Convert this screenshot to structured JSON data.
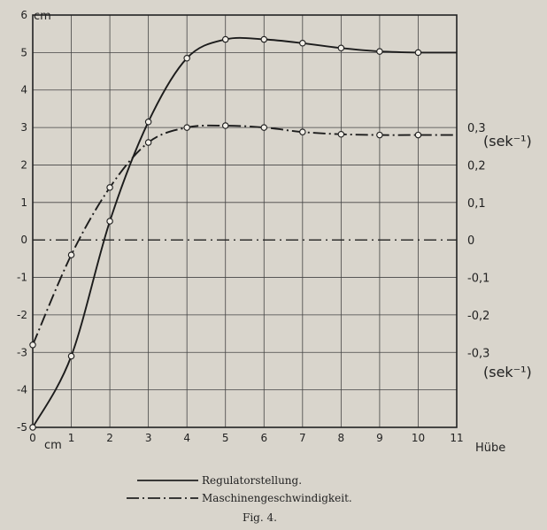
{
  "chart_data": {
    "type": "line",
    "x_ticks": [
      "0",
      "1",
      "2",
      "3",
      "4",
      "5",
      "6",
      "7",
      "8",
      "9",
      "10",
      "11"
    ],
    "y_ticks": [
      "-5",
      "-4",
      "-3",
      "-2",
      "-1",
      "0",
      "1",
      "2",
      "3",
      "4",
      "5",
      "6"
    ],
    "right_ticks": [
      "0,3",
      "0,2",
      "0,1",
      "0",
      "-0,1",
      "-0,2",
      "-0,3"
    ],
    "right_tick_values": [
      0.3,
      0.2,
      0.1,
      0,
      -0.1,
      -0.2,
      -0.3
    ],
    "xlabel": "Hübe",
    "ylabel_top": "cm",
    "ylabel_bottom": "cm",
    "right_unit_top": "(sek⁻¹)",
    "right_unit_bottom": "(sek⁻¹)",
    "xlim": [
      0,
      11
    ],
    "ylim": [
      -5,
      6
    ],
    "grid": true,
    "series": [
      {
        "name": "Regulatorstellung.",
        "style": "solid",
        "x": [
          0,
          1,
          2,
          3,
          4,
          5,
          6,
          7,
          8,
          9,
          10,
          11
        ],
        "y": [
          -5.0,
          -3.1,
          0.5,
          3.15,
          4.85,
          5.35,
          5.35,
          5.25,
          5.12,
          5.03,
          5.0,
          5.0
        ],
        "markers_x": [
          0,
          1,
          2,
          3,
          4,
          5,
          6,
          7,
          8,
          9,
          10
        ]
      },
      {
        "name": "Maschinengeschwindigkeit.",
        "style": "dash-dot",
        "x": [
          0,
          1,
          2,
          3,
          4,
          5,
          6,
          7,
          8,
          9,
          10,
          11
        ],
        "y": [
          -2.8,
          -0.4,
          1.4,
          2.6,
          3.0,
          3.05,
          3.0,
          2.88,
          2.82,
          2.8,
          2.8,
          2.8
        ],
        "markers_x": [
          0,
          1,
          2,
          3,
          4,
          5,
          6,
          7,
          8,
          9,
          10
        ]
      }
    ],
    "zero_line_style": "dash-dot"
  },
  "caption": "Fig. 4."
}
